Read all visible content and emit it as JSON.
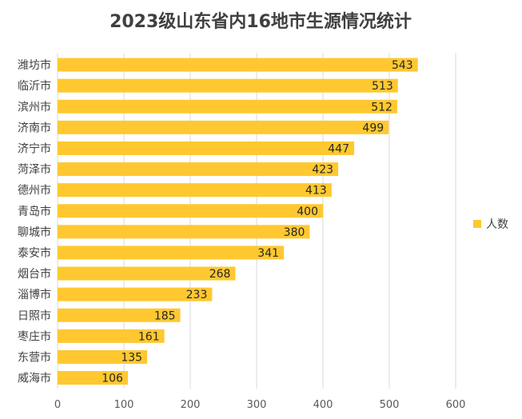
{
  "colors": {
    "bar": "#FFC830",
    "grid": "#d9d9d9",
    "text": "#404040"
  },
  "chart_data": {
    "type": "bar",
    "orientation": "horizontal",
    "title": "2023级山东省内16地市生源情况统计",
    "categories": [
      "潍坊市",
      "临沂市",
      "滨州市",
      "济南市",
      "济宁市",
      "菏泽市",
      "德州市",
      "青岛市",
      "聊城市",
      "泰安市",
      "烟台市",
      "淄博市",
      "日照市",
      "枣庄市",
      "东营市",
      "威海市"
    ],
    "series": [
      {
        "name": "人数",
        "values": [
          543,
          513,
          512,
          499,
          447,
          423,
          413,
          400,
          380,
          341,
          268,
          233,
          185,
          161,
          135,
          106
        ]
      }
    ],
    "xlim": [
      0,
      600
    ],
    "xticks": [
      0,
      100,
      200,
      300,
      400,
      500,
      600
    ],
    "grid": true,
    "legend_position": "right"
  }
}
